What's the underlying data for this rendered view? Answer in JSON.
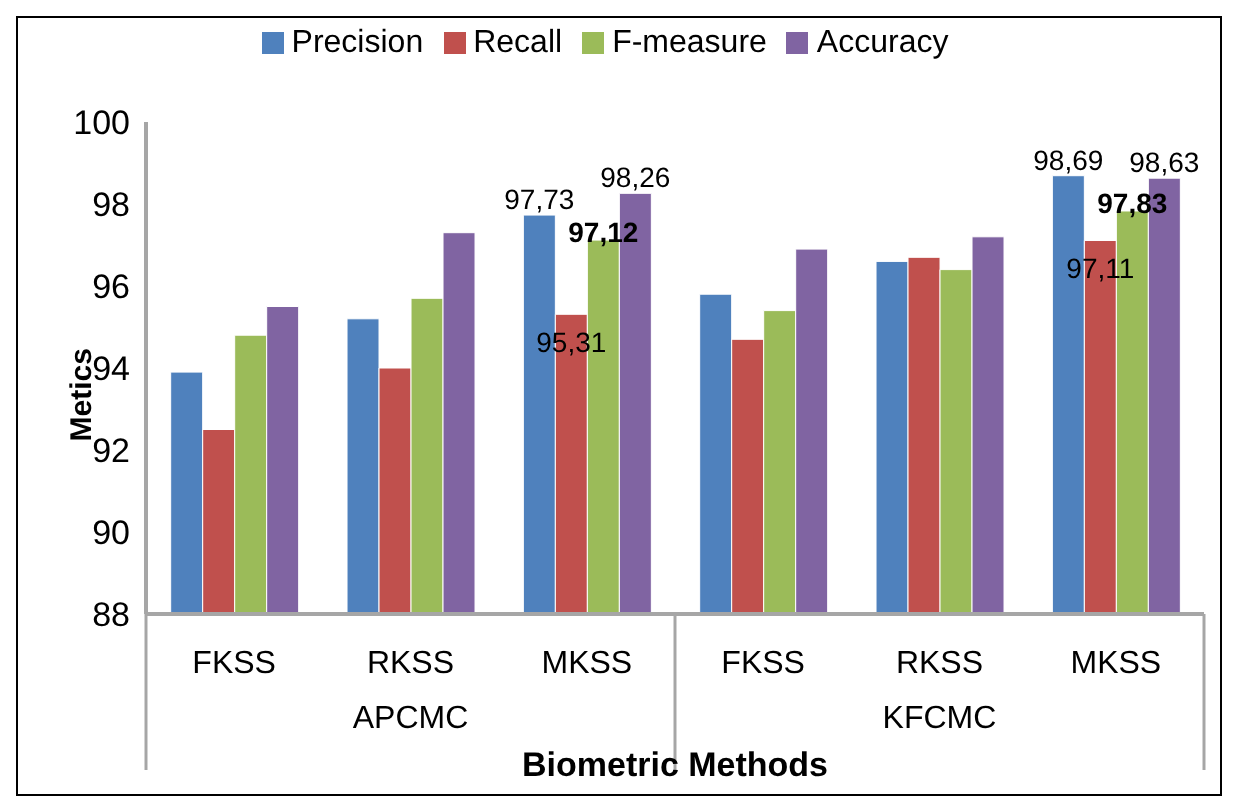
{
  "chart_data": {
    "type": "bar",
    "xlabel": "Biometric Methods",
    "ylabel": "Metics",
    "categories": [
      "FKSS",
      "RKSS",
      "MKSS",
      "FKSS",
      "RKSS",
      "MKSS"
    ],
    "annotations": [
      "APCMC",
      "KFCMC"
    ],
    "series": [
      {
        "name": "Precision",
        "color": "#4f81bd",
        "values": [
          93.9,
          95.2,
          97.73,
          95.8,
          96.6,
          98.69
        ],
        "value_labels": [
          null,
          null,
          "97,73",
          null,
          null,
          "98,69"
        ]
      },
      {
        "name": "Recall",
        "color": "#c0504d",
        "values": [
          92.5,
          94.0,
          95.31,
          94.7,
          96.7,
          97.11
        ],
        "value_labels": [
          null,
          null,
          "95,31",
          null,
          null,
          "97,11"
        ]
      },
      {
        "name": "F-measure",
        "color": "#9bbb59",
        "values": [
          94.8,
          95.7,
          97.12,
          95.4,
          96.4,
          97.83
        ],
        "value_labels": [
          null,
          null,
          "97,12",
          null,
          null,
          "97,83"
        ]
      },
      {
        "name": "Accuracy",
        "color": "#8064a2",
        "values": [
          95.5,
          97.3,
          98.26,
          96.9,
          97.2,
          98.63
        ],
        "value_labels": [
          null,
          null,
          "98,26",
          null,
          null,
          "98,63"
        ]
      }
    ],
    "ylim": [
      88,
      100
    ],
    "yticks": [
      88,
      90,
      92,
      94,
      96,
      98,
      100
    ],
    "grid": false,
    "legend": "top"
  }
}
